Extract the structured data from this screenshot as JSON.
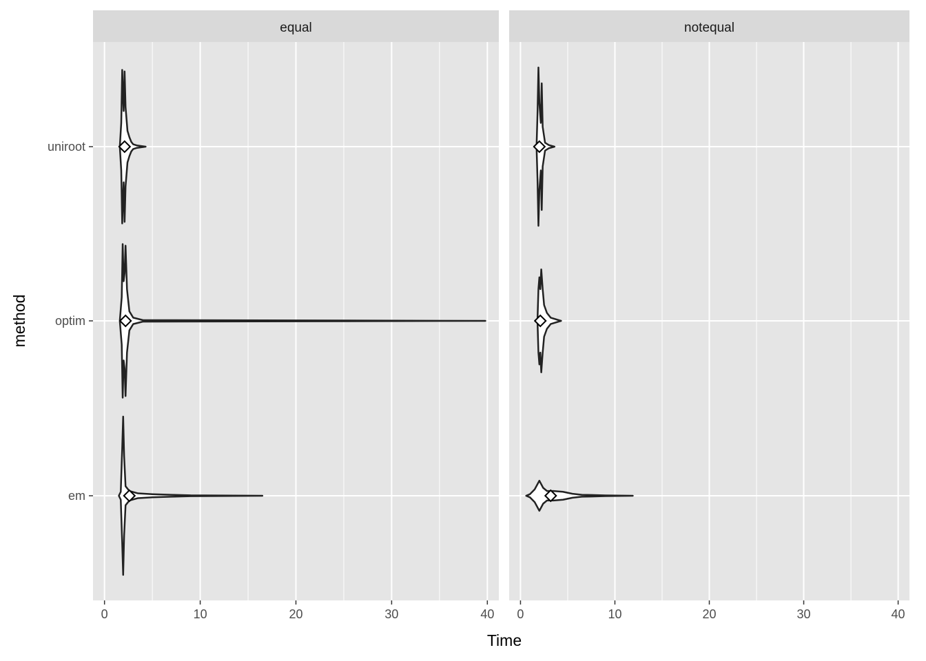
{
  "chart_data": {
    "type": "violin",
    "xlabel": "Time",
    "ylabel": "method",
    "xlim": [
      -1.2,
      41.2
    ],
    "x_ticks": [
      0,
      10,
      20,
      30,
      40
    ],
    "categories": [
      "em",
      "optim",
      "uniroot"
    ],
    "grid": true,
    "panel_background": "#E5E5E5",
    "strip_background": "#D9D9D9",
    "facets": [
      {
        "label": "equal",
        "violins": [
          {
            "method": "uniroot",
            "mean": 2.1,
            "density": [
              [
                1.6,
                0
              ],
              [
                1.75,
                0.3
              ],
              [
                1.85,
                0.97
              ],
              [
                1.95,
                0.6
              ],
              [
                2.0,
                0.45
              ],
              [
                2.1,
                0.95
              ],
              [
                2.2,
                0.5
              ],
              [
                2.4,
                0.2
              ],
              [
                2.6,
                0.12
              ],
              [
                2.8,
                0.06
              ],
              [
                3.0,
                0.03
              ],
              [
                3.4,
                0.015
              ],
              [
                4.3,
                0
              ]
            ]
          },
          {
            "method": "optim",
            "mean": 2.2,
            "density": [
              [
                1.6,
                0
              ],
              [
                1.8,
                0.3
              ],
              [
                1.9,
                0.97
              ],
              [
                2.0,
                0.5
              ],
              [
                2.1,
                0.6
              ],
              [
                2.2,
                0.95
              ],
              [
                2.35,
                0.4
              ],
              [
                2.6,
                0.12
              ],
              [
                3.0,
                0.04
              ],
              [
                4.0,
                0.01
              ],
              [
                39.8,
                0
              ]
            ]
          },
          {
            "method": "em",
            "mean": 2.6,
            "density": [
              [
                1.5,
                0
              ],
              [
                1.7,
                0.05
              ],
              [
                1.85,
                0.6
              ],
              [
                1.95,
                1.0
              ],
              [
                2.05,
                0.5
              ],
              [
                2.2,
                0.12
              ],
              [
                2.6,
                0.06
              ],
              [
                3.5,
                0.03
              ],
              [
                5,
                0.02
              ],
              [
                7,
                0.012
              ],
              [
                9,
                0.005
              ],
              [
                16.5,
                0
              ]
            ]
          }
        ]
      },
      {
        "label": "notequal",
        "violins": [
          {
            "method": "uniroot",
            "mean": 2.0,
            "density": [
              [
                1.7,
                0
              ],
              [
                1.8,
                0.4
              ],
              [
                1.9,
                1.0
              ],
              [
                2.0,
                0.55
              ],
              [
                2.15,
                0.3
              ],
              [
                2.25,
                0.8
              ],
              [
                2.35,
                0.25
              ],
              [
                2.6,
                0.05
              ],
              [
                3.0,
                0.02
              ],
              [
                3.6,
                0
              ]
            ]
          },
          {
            "method": "optim",
            "mean": 2.1,
            "density": [
              [
                1.8,
                0
              ],
              [
                1.9,
                0.4
              ],
              [
                2.0,
                0.55
              ],
              [
                2.1,
                0.4
              ],
              [
                2.2,
                0.65
              ],
              [
                2.35,
                0.4
              ],
              [
                2.5,
                0.2
              ],
              [
                2.8,
                0.1
              ],
              [
                3.2,
                0.04
              ],
              [
                4.3,
                0
              ]
            ]
          },
          {
            "method": "em",
            "mean": 3.2,
            "density": [
              [
                0.6,
                0
              ],
              [
                1.0,
                0.02
              ],
              [
                1.5,
                0.08
              ],
              [
                2.0,
                0.19
              ],
              [
                2.4,
                0.1
              ],
              [
                2.8,
                0.06
              ],
              [
                3.5,
                0.06
              ],
              [
                4.5,
                0.05
              ],
              [
                5.5,
                0.025
              ],
              [
                6.5,
                0.012
              ],
              [
                7.5,
                0.01
              ],
              [
                9,
                0.004
              ],
              [
                11.9,
                0
              ]
            ]
          }
        ]
      }
    ]
  }
}
